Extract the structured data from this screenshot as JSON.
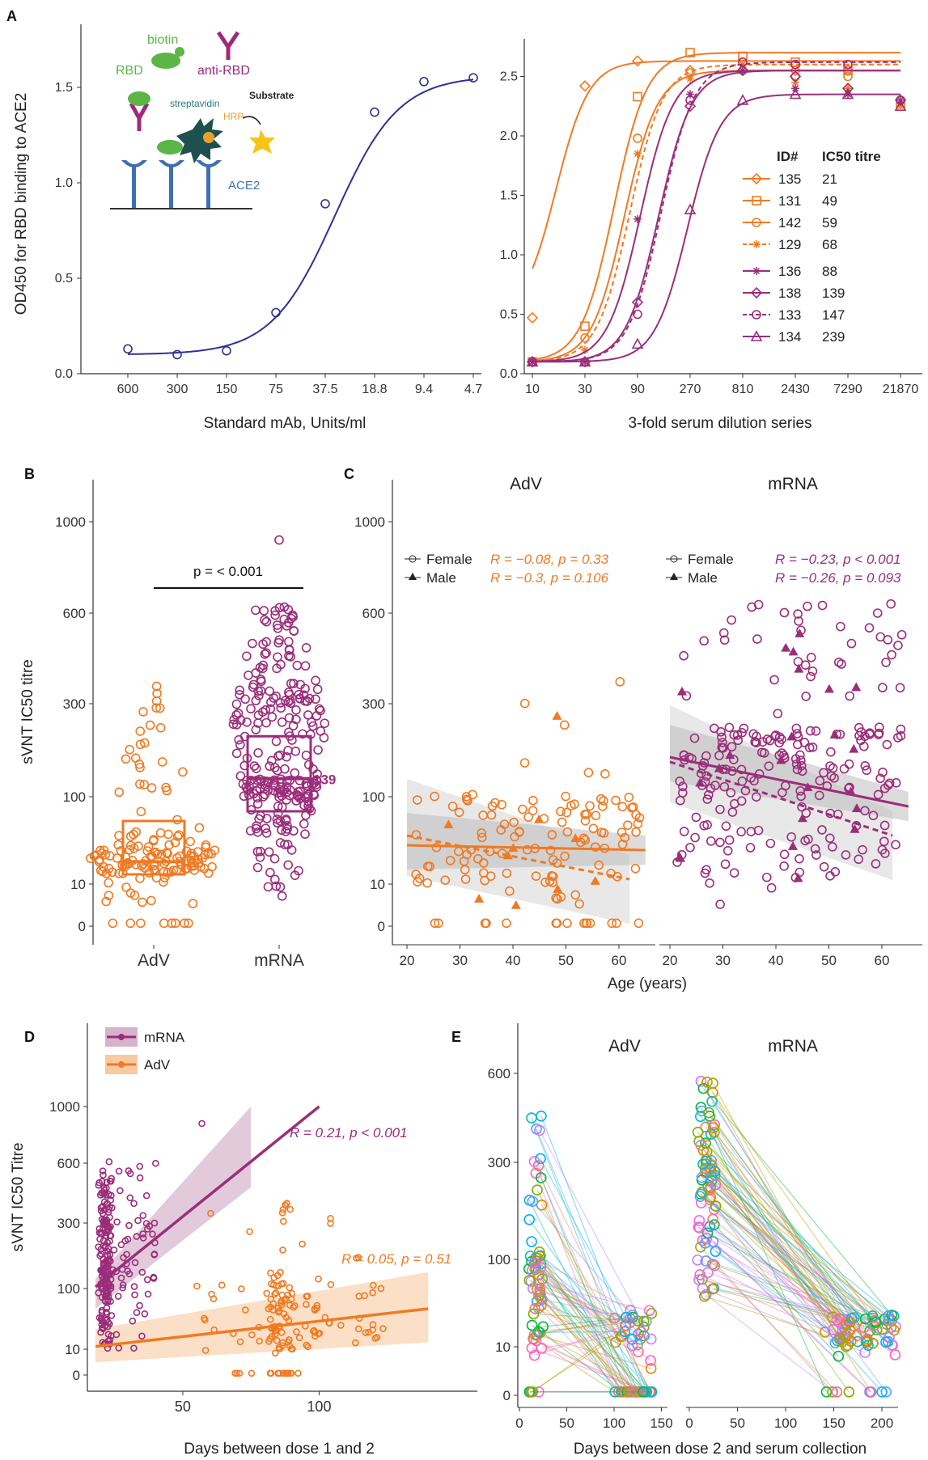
{
  "colors": {
    "adv": "#F07A22",
    "mrna": "#9B2D7A",
    "navy": "#2E3192",
    "adv_band": "#F9C9A0",
    "mrna_band": "#D6B3CB",
    "grey_band": "#BDBDBD"
  },
  "panel_labels": {
    "a": "A",
    "b": "B",
    "c": "C",
    "d": "D",
    "e": "E"
  },
  "inset": {
    "biotin": "biotin",
    "rbd": "RBD",
    "anti_rbd": "anti-RBD",
    "streptavidin": "streptavidin",
    "substrate": "Substrate",
    "hrp": "HRP",
    "ace2": "ACE2"
  },
  "chart_data": [
    {
      "id": "A-left",
      "type": "line",
      "ylabel": "OD450 for RBD binding to ACE2",
      "xlabel": "Standard mAb, Units/ml",
      "categories": [
        "600",
        "300",
        "150",
        "75",
        "37.5",
        "18.8",
        "9.4",
        "4.7"
      ],
      "yticks": [
        "0.0",
        "0.5",
        "1.0",
        "1.5"
      ],
      "ylim": [
        0,
        1.6
      ],
      "series": [
        {
          "values": [
            0.13,
            0.1,
            0.12,
            0.32,
            0.89,
            1.37,
            1.53,
            1.55
          ]
        }
      ]
    },
    {
      "id": "A-right",
      "type": "line",
      "xlabel": "3-fold serum dilution series",
      "categories": [
        "10",
        "30",
        "90",
        "270",
        "810",
        "2430",
        "7290",
        "21870"
      ],
      "yticks": [
        "0.0",
        "0.5",
        "1.0",
        "1.5",
        "2.0",
        "2.5"
      ],
      "ylim": [
        0,
        2.7
      ],
      "legend": {
        "header_id": "ID#",
        "header_titre": "IC50 titre",
        "position": "right"
      },
      "series": [
        {
          "name": "135",
          "titre": "21",
          "group": "adv",
          "marker": "diamond",
          "values": [
            0.47,
            2.42,
            2.63,
            2.55,
            2.55,
            2.55,
            2.55,
            2.3
          ]
        },
        {
          "name": "131",
          "titre": "49",
          "group": "adv",
          "marker": "square",
          "values": [
            0.1,
            0.4,
            2.33,
            2.7,
            2.67,
            2.62,
            2.55,
            2.25
          ]
        },
        {
          "name": "142",
          "titre": "59",
          "group": "adv",
          "marker": "circle",
          "values": [
            0.1,
            0.3,
            1.98,
            2.53,
            2.55,
            2.5,
            2.5,
            2.3
          ]
        },
        {
          "name": "129",
          "titre": "68",
          "group": "adv",
          "marker": "star",
          "values": [
            0.1,
            0.2,
            1.85,
            2.48,
            2.6,
            2.45,
            2.4,
            2.25
          ]
        },
        {
          "name": "136",
          "titre": "88",
          "group": "mrna",
          "marker": "star",
          "values": [
            0.1,
            0.1,
            1.3,
            2.35,
            2.55,
            2.4,
            2.35,
            2.3
          ]
        },
        {
          "name": "138",
          "titre": "139",
          "group": "mrna",
          "marker": "diamond",
          "values": [
            0.1,
            0.1,
            0.6,
            2.25,
            2.55,
            2.5,
            2.4,
            2.3
          ]
        },
        {
          "name": "133",
          "titre": "147",
          "group": "mrna",
          "marker": "circle",
          "values": [
            0.1,
            0.1,
            0.5,
            2.3,
            2.62,
            2.6,
            2.6,
            2.3
          ]
        },
        {
          "name": "134",
          "titre": "239",
          "group": "mrna",
          "marker": "triangle",
          "values": [
            0.1,
            0.1,
            0.25,
            1.38,
            2.3,
            2.35,
            2.35,
            2.25
          ]
        }
      ]
    },
    {
      "id": "B",
      "type": "scatter",
      "ylabel": "sVNT IC50 titre",
      "categories": [
        "AdV",
        "mRNA"
      ],
      "yticks": [
        "0",
        "10",
        "100",
        "300",
        "600",
        "1000"
      ],
      "medians": [
        "33",
        "139"
      ],
      "p_label": "p = < 0.001"
    },
    {
      "id": "C",
      "type": "scatter",
      "xlabel": "Age (years)",
      "facets": [
        "AdV",
        "mRNA"
      ],
      "xticks": [
        "20",
        "30",
        "40",
        "50",
        "60"
      ],
      "yticks": [
        "0",
        "10",
        "100",
        "300",
        "600",
        "1000"
      ],
      "legend": {
        "female": "Female",
        "male": "Male"
      },
      "annotations": {
        "adv_female": "R = −0.08, p = 0.33",
        "adv_male": "R = −0.3, p = 0.106",
        "mrna_female": "R = −0.23, p < 0.001",
        "mrna_male": "R = −0.26, p = 0.093"
      }
    },
    {
      "id": "D",
      "type": "scatter",
      "ylabel": "sVNT IC50 Titre",
      "xlabel": "Days between dose 1 and 2",
      "xticks": [
        "50",
        "100"
      ],
      "yticks": [
        "0",
        "10",
        "100",
        "300",
        "600",
        "1000"
      ],
      "legend": [
        "mRNA",
        "AdV"
      ],
      "annotations": {
        "mrna": "R = 0.21, p < 0.001",
        "adv": "R = 0.05, p = 0.51"
      }
    },
    {
      "id": "E",
      "type": "line",
      "xlabel": "Days between dose 2 and serum collection",
      "facets": [
        "AdV",
        "mRNA"
      ],
      "xticks_adv": [
        "0",
        "50",
        "100",
        "150"
      ],
      "xticks_mrna": [
        "0",
        "50",
        "100",
        "150",
        "200"
      ],
      "yticks": [
        "0",
        "10",
        "100",
        "300",
        "600"
      ]
    }
  ]
}
